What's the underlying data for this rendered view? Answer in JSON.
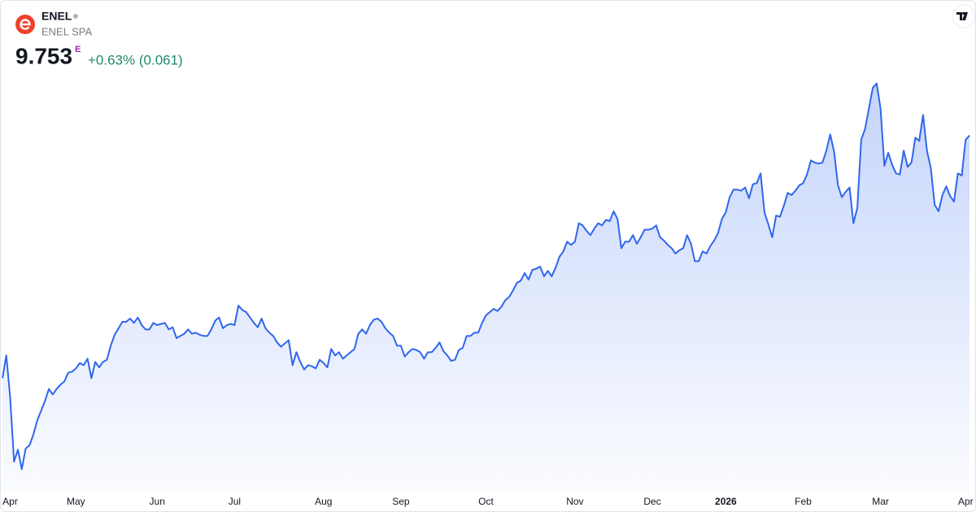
{
  "chart_data": {
    "type": "area",
    "title": "ENEL",
    "subtitle": "ENEL SPA",
    "price": "9.753",
    "price_flag": "E",
    "change": "+0.63% (0.061)",
    "color": "#2f66ec",
    "change_color": "#1f8a6c",
    "values": [
      7.51,
      7.72,
      7.33,
      6.74,
      6.85,
      6.67,
      6.86,
      6.89,
      6.99,
      7.12,
      7.21,
      7.3,
      7.41,
      7.36,
      7.41,
      7.45,
      7.48,
      7.56,
      7.57,
      7.6,
      7.65,
      7.63,
      7.69,
      7.51,
      7.66,
      7.61,
      7.66,
      7.68,
      7.81,
      7.91,
      7.97,
      8.03,
      8.03,
      8.06,
      8.02,
      8.07,
      8.0,
      7.96,
      7.96,
      8.02,
      8.0,
      8.01,
      8.02,
      7.96,
      7.98,
      7.88,
      7.9,
      7.92,
      7.96,
      7.92,
      7.93,
      7.91,
      7.9,
      7.9,
      7.96,
      8.04,
      8.07,
      7.97,
      8.0,
      8.01,
      8.0,
      8.18,
      8.14,
      8.12,
      8.07,
      8.02,
      7.98,
      8.06,
      7.97,
      7.93,
      7.9,
      7.84,
      7.8,
      7.83,
      7.86,
      7.63,
      7.75,
      7.66,
      7.59,
      7.63,
      7.62,
      7.6,
      7.68,
      7.65,
      7.61,
      7.78,
      7.72,
      7.75,
      7.69,
      7.72,
      7.75,
      7.78,
      7.92,
      7.96,
      7.92,
      8.0,
      8.05,
      8.06,
      8.03,
      7.97,
      7.93,
      7.9,
      7.81,
      7.81,
      7.71,
      7.75,
      7.78,
      7.77,
      7.75,
      7.69,
      7.75,
      7.75,
      7.79,
      7.84,
      7.76,
      7.72,
      7.67,
      7.68,
      7.77,
      7.79,
      7.9,
      7.9,
      7.93,
      7.93,
      8.02,
      8.09,
      8.12,
      8.15,
      8.13,
      8.17,
      8.23,
      8.26,
      8.32,
      8.39,
      8.41,
      8.48,
      8.42,
      8.51,
      8.52,
      8.54,
      8.45,
      8.5,
      8.45,
      8.53,
      8.63,
      8.68,
      8.77,
      8.74,
      8.77,
      8.94,
      8.92,
      8.87,
      8.83,
      8.89,
      8.94,
      8.92,
      8.97,
      8.96,
      9.05,
      8.98,
      8.71,
      8.77,
      8.77,
      8.83,
      8.75,
      8.81,
      8.88,
      8.88,
      8.89,
      8.92,
      8.81,
      8.78,
      8.74,
      8.71,
      8.66,
      8.69,
      8.71,
      8.83,
      8.75,
      8.59,
      8.59,
      8.68,
      8.66,
      8.73,
      8.78,
      8.85,
      8.98,
      9.04,
      9.18,
      9.25,
      9.25,
      9.24,
      9.27,
      9.17,
      9.3,
      9.31,
      9.4,
      9.04,
      8.93,
      8.81,
      9.01,
      9.0,
      9.1,
      9.22,
      9.2,
      9.24,
      9.29,
      9.31,
      9.39,
      9.52,
      9.5,
      9.49,
      9.5,
      9.61,
      9.76,
      9.6,
      9.29,
      9.18,
      9.23,
      9.27,
      8.94,
      9.08,
      9.71,
      9.81,
      10.0,
      10.19,
      10.23,
      10.0,
      9.47,
      9.59,
      9.48,
      9.4,
      9.39,
      9.61,
      9.46,
      9.5,
      9.73,
      9.7,
      9.94,
      9.61,
      9.45,
      9.11,
      9.05,
      9.2,
      9.28,
      9.19,
      9.14,
      9.4,
      9.38,
      9.71,
      9.75
    ],
    "xlim": [
      0,
      250
    ],
    "ylim": [
      6.5,
      10.55
    ],
    "xticks": [
      {
        "value": 2,
        "label": "Apr"
      },
      {
        "value": 19,
        "label": "May"
      },
      {
        "value": 40,
        "label": "Jun"
      },
      {
        "value": 60,
        "label": "Jul"
      },
      {
        "value": 83,
        "label": "Aug"
      },
      {
        "value": 103,
        "label": "Sep"
      },
      {
        "value": 125,
        "label": "Oct"
      },
      {
        "value": 148,
        "label": "Nov"
      },
      {
        "value": 168,
        "label": "Dec"
      },
      {
        "value": 187,
        "label": "2026"
      },
      {
        "value": 207,
        "label": "Feb"
      },
      {
        "value": 227,
        "label": "Mar"
      },
      {
        "value": 249,
        "label": "Apr"
      }
    ],
    "bold_tick": 9
  }
}
